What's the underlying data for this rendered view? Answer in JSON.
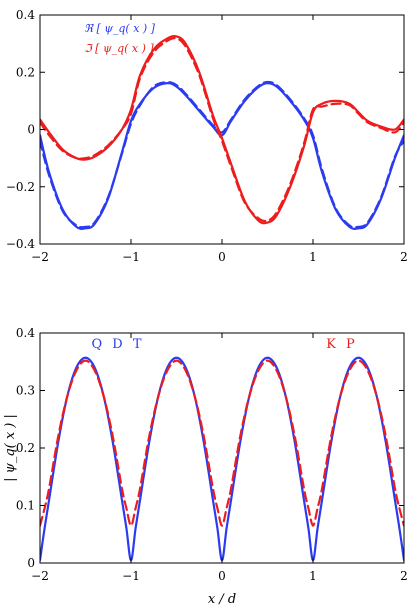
{
  "colors": {
    "blue": "#2b3bf0",
    "red": "#ee1c1c",
    "axis": "#000000"
  },
  "chart_data": [
    {
      "type": "line",
      "xlabel": "",
      "ylabel": "",
      "xlim": [
        -2,
        2
      ],
      "ylim": [
        -0.4,
        0.4
      ],
      "xticks": [
        "−2",
        "−1",
        "0",
        "1",
        "2"
      ],
      "yticks": [
        "−0.4",
        "−0.2",
        "0",
        "0.2",
        "0.4"
      ],
      "legend": [
        "ℜ [ ψ_q( x ) ]",
        "ℑ [ ψ_q( x ) ]"
      ],
      "legend_placement": "top-left",
      "series": [
        {
          "name": "ℜ [ ψ_q( x ) ]",
          "style": "solid",
          "color": "blue",
          "x": [
            -2,
            -1.9,
            -1.75,
            -1.6,
            -1.5,
            -1.4,
            -1.25,
            -1.1,
            -1.0,
            -0.9,
            -0.75,
            -0.6,
            -0.5,
            -0.4,
            -0.25,
            -0.1,
            0.0,
            0.1,
            0.25,
            0.4,
            0.5,
            0.6,
            0.75,
            0.9,
            1.0,
            1.1,
            1.25,
            1.4,
            1.5,
            1.6,
            1.75,
            1.9,
            2.0
          ],
          "y": [
            -0.02,
            -0.15,
            -0.28,
            -0.34,
            -0.345,
            -0.33,
            -0.24,
            -0.08,
            0.03,
            0.09,
            0.145,
            0.162,
            0.15,
            0.12,
            0.065,
            0.01,
            -0.02,
            0.03,
            0.1,
            0.148,
            0.162,
            0.15,
            0.1,
            0.035,
            -0.03,
            -0.15,
            -0.28,
            -0.34,
            -0.345,
            -0.33,
            -0.24,
            -0.1,
            -0.02
          ]
        },
        {
          "name": "ℜ [ ψ_q( x ) ] (KP)",
          "style": "dashed",
          "color": "blue",
          "x": [
            -2,
            -1.9,
            -1.75,
            -1.6,
            -1.5,
            -1.4,
            -1.25,
            -1.1,
            -1.0,
            -0.9,
            -0.75,
            -0.6,
            -0.5,
            -0.4,
            -0.25,
            -0.1,
            0.0,
            0.1,
            0.25,
            0.4,
            0.5,
            0.6,
            0.75,
            0.9,
            1.0,
            1.1,
            1.25,
            1.4,
            1.5,
            1.6,
            1.75,
            1.9,
            2.0
          ],
          "y": [
            -0.04,
            -0.16,
            -0.285,
            -0.335,
            -0.34,
            -0.325,
            -0.235,
            -0.085,
            0.02,
            0.085,
            0.15,
            0.165,
            0.155,
            0.125,
            0.07,
            0.015,
            -0.01,
            0.035,
            0.105,
            0.152,
            0.166,
            0.155,
            0.105,
            0.04,
            -0.02,
            -0.14,
            -0.275,
            -0.335,
            -0.34,
            -0.325,
            -0.235,
            -0.095,
            -0.04
          ]
        },
        {
          "name": "ℑ [ ψ_q( x ) ]",
          "style": "solid",
          "color": "red",
          "x": [
            -2,
            -1.9,
            -1.75,
            -1.6,
            -1.5,
            -1.4,
            -1.25,
            -1.1,
            -1.0,
            -0.9,
            -0.75,
            -0.6,
            -0.5,
            -0.4,
            -0.25,
            -0.1,
            0.0,
            0.1,
            0.25,
            0.4,
            0.5,
            0.6,
            0.75,
            0.9,
            1.0,
            1.1,
            1.25,
            1.4,
            1.5,
            1.6,
            1.75,
            1.9,
            2.0
          ],
          "y": [
            0.035,
            -0.01,
            -0.07,
            -0.1,
            -0.105,
            -0.095,
            -0.06,
            0.0,
            0.07,
            0.19,
            0.28,
            0.318,
            0.325,
            0.3,
            0.2,
            0.05,
            -0.03,
            -0.12,
            -0.25,
            -0.318,
            -0.325,
            -0.3,
            -0.2,
            -0.06,
            0.06,
            0.09,
            0.1,
            0.09,
            0.06,
            0.03,
            0.01,
            0.0,
            0.035
          ]
        },
        {
          "name": "ℑ [ ψ_q( x ) ] (KP)",
          "style": "dashed",
          "color": "red",
          "x": [
            -2,
            -1.9,
            -1.75,
            -1.6,
            -1.5,
            -1.4,
            -1.25,
            -1.1,
            -1.0,
            -0.9,
            -0.75,
            -0.6,
            -0.5,
            -0.4,
            -0.25,
            -0.1,
            0.0,
            0.1,
            0.25,
            0.4,
            0.5,
            0.6,
            0.75,
            0.9,
            1.0,
            1.1,
            1.25,
            1.4,
            1.5,
            1.6,
            1.75,
            1.9,
            2.0
          ],
          "y": [
            0.025,
            -0.02,
            -0.075,
            -0.1,
            -0.1,
            -0.09,
            -0.055,
            0.0,
            0.055,
            0.18,
            0.27,
            0.31,
            0.318,
            0.29,
            0.19,
            0.04,
            -0.04,
            -0.13,
            -0.255,
            -0.31,
            -0.318,
            -0.29,
            -0.19,
            -0.05,
            0.07,
            0.08,
            0.09,
            0.085,
            0.055,
            0.025,
            0.005,
            -0.01,
            0.025
          ]
        }
      ]
    },
    {
      "type": "line",
      "xlabel": "x / d",
      "ylabel": "| ψ_q( x ) |",
      "xlim": [
        -2,
        2
      ],
      "ylim": [
        0,
        0.4
      ],
      "xticks": [
        "−2",
        "−1",
        "0",
        "1",
        "2"
      ],
      "yticks": [
        "0",
        "0.1",
        "0.2",
        "0.3",
        "0.4"
      ],
      "annotations": [
        {
          "text": "Q D T",
          "color": "blue"
        },
        {
          "text": "K P",
          "color": "red"
        }
      ],
      "series": [
        {
          "name": "Q D T",
          "style": "solid",
          "color": "blue",
          "x": [
            -2,
            -1.95,
            -1.9,
            -1.8,
            -1.7,
            -1.6,
            -1.5,
            -1.4,
            -1.3,
            -1.2,
            -1.1,
            -1.05,
            -1.0,
            -0.95,
            -0.9,
            -0.8,
            -0.7,
            -0.6,
            -0.5,
            -0.4,
            -0.3,
            -0.2,
            -0.1,
            -0.05,
            0.0,
            0.05,
            0.1,
            0.2,
            0.3,
            0.4,
            0.5,
            0.6,
            0.7,
            0.8,
            0.9,
            0.95,
            1.0,
            1.05,
            1.1,
            1.2,
            1.3,
            1.4,
            1.5,
            1.6,
            1.7,
            1.8,
            1.9,
            1.95,
            2.0
          ],
          "y": [
            0.005,
            0.06,
            0.11,
            0.21,
            0.29,
            0.34,
            0.357,
            0.34,
            0.29,
            0.21,
            0.11,
            0.06,
            0.005,
            0.06,
            0.11,
            0.21,
            0.29,
            0.34,
            0.357,
            0.34,
            0.29,
            0.21,
            0.11,
            0.06,
            0.005,
            0.06,
            0.11,
            0.21,
            0.29,
            0.34,
            0.357,
            0.34,
            0.29,
            0.21,
            0.11,
            0.06,
            0.005,
            0.06,
            0.11,
            0.21,
            0.29,
            0.34,
            0.357,
            0.34,
            0.29,
            0.21,
            0.11,
            0.06,
            0.005
          ]
        },
        {
          "name": "K P",
          "style": "dashed",
          "color": "red",
          "x": [
            -2,
            -1.95,
            -1.9,
            -1.8,
            -1.7,
            -1.6,
            -1.5,
            -1.4,
            -1.3,
            -1.2,
            -1.1,
            -1.05,
            -1.0,
            -0.95,
            -0.9,
            -0.8,
            -0.7,
            -0.6,
            -0.5,
            -0.4,
            -0.3,
            -0.2,
            -0.1,
            -0.05,
            0.0,
            0.05,
            0.1,
            0.2,
            0.3,
            0.4,
            0.5,
            0.6,
            0.7,
            0.8,
            0.9,
            0.95,
            1.0,
            1.05,
            1.1,
            1.2,
            1.3,
            1.4,
            1.5,
            1.6,
            1.7,
            1.8,
            1.9,
            1.95,
            2.0
          ],
          "y": [
            0.065,
            0.095,
            0.13,
            0.22,
            0.29,
            0.335,
            0.352,
            0.335,
            0.29,
            0.22,
            0.13,
            0.095,
            0.065,
            0.095,
            0.13,
            0.22,
            0.29,
            0.335,
            0.352,
            0.335,
            0.29,
            0.22,
            0.13,
            0.095,
            0.065,
            0.095,
            0.13,
            0.22,
            0.29,
            0.335,
            0.352,
            0.335,
            0.29,
            0.22,
            0.13,
            0.095,
            0.065,
            0.095,
            0.13,
            0.22,
            0.29,
            0.335,
            0.352,
            0.335,
            0.29,
            0.22,
            0.13,
            0.095,
            0.065
          ]
        }
      ]
    }
  ]
}
